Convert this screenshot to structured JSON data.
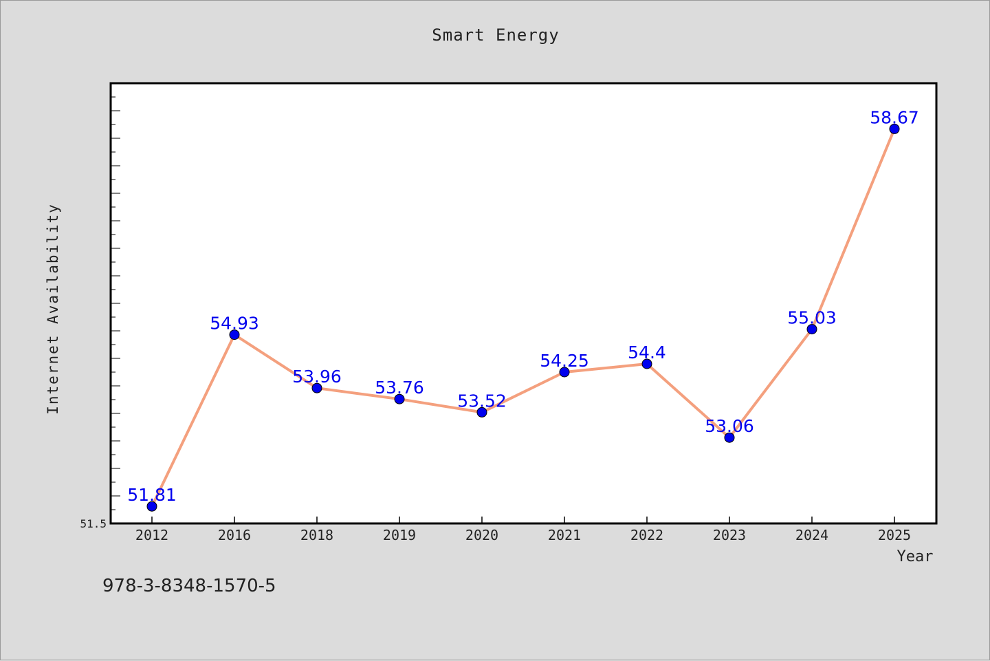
{
  "chart_data": {
    "type": "line",
    "title": "Smart Energy",
    "xlabel": "Year",
    "ylabel": "Internet Availability",
    "categories": [
      "2012",
      "2016",
      "2018",
      "2019",
      "2020",
      "2021",
      "2022",
      "2023",
      "2024",
      "2025"
    ],
    "series": [
      {
        "values": [
          51.81,
          54.93,
          53.96,
          53.76,
          53.52,
          54.25,
          54.4,
          53.06,
          55.03,
          58.67
        ]
      }
    ],
    "data_labels": [
      "51.81",
      "54.93",
      "53.96",
      "53.76",
      "53.52",
      "54.25",
      "54.4",
      "53.06",
      "55.03",
      "58.67"
    ],
    "y_tick_labels": [
      "51.5"
    ],
    "ylim": [
      51.5,
      59.5
    ],
    "grid": false,
    "legend": "none",
    "colors": {
      "line": "#f4a07e",
      "marker": "#0000ee",
      "data_label": "#0000ee",
      "plot_background": "#ffffff",
      "page_background": "#dcdcdc"
    }
  },
  "footer": {
    "isbn": "978-3-8348-1570-5"
  }
}
